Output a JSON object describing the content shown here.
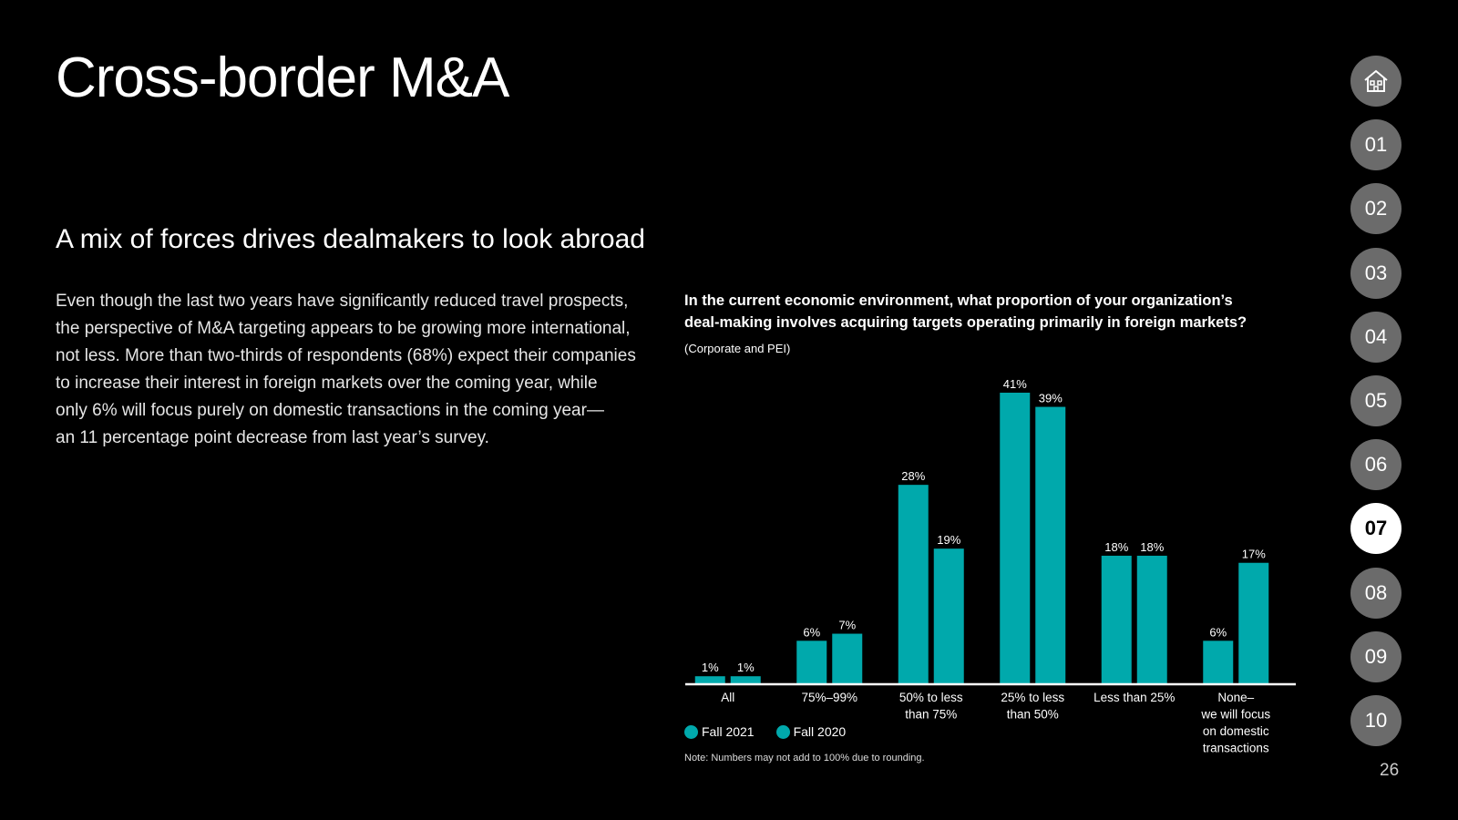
{
  "page": {
    "title": "Cross-border M&A",
    "subtitle": "A mix of forces drives dealmakers to look abroad",
    "body_lines": [
      "Even though the last two years have significantly reduced travel prospects,",
      "the perspective of M&A targeting appears to be growing more international,",
      "not less. More than two-thirds of respondents (68%) expect their companies",
      "to increase their interest in foreign markets over the coming year, while",
      "only 6% will focus purely on domestic transactions in the coming year—",
      "an 11 percentage point decrease from last year’s survey."
    ],
    "page_number": "26"
  },
  "nav": {
    "home_icon": "home-icon",
    "items": [
      "01",
      "02",
      "03",
      "04",
      "05",
      "06",
      "07",
      "08",
      "09",
      "10"
    ],
    "active": "07"
  },
  "colors": {
    "fall2021": "#00a9ac",
    "fall2020": "#00a9ac",
    "nav_inactive": "#6b6b6b",
    "nav_active": "#ffffff"
  },
  "chart_data": {
    "type": "bar",
    "title_lines": [
      "In the current economic environment, what proportion of your organization’s",
      "deal-making involves acquiring targets operating primarily in foreign markets?"
    ],
    "subtitle": "(Corporate and PEI)",
    "categories": [
      [
        "All"
      ],
      [
        "75%–99%"
      ],
      [
        "50% to less",
        "than 75%"
      ],
      [
        "25% to less",
        "than 50%"
      ],
      [
        "Less than 25%"
      ],
      [
        "None–",
        "we will focus",
        "on domestic",
        "transactions"
      ]
    ],
    "series": [
      {
        "name": "Fall 2021",
        "values": [
          1,
          6,
          28,
          41,
          18,
          6
        ]
      },
      {
        "name": "Fall 2020",
        "values": [
          1,
          7,
          19,
          39,
          18,
          17
        ]
      }
    ],
    "value_suffix": "%",
    "ylim": [
      0,
      41
    ],
    "legend_position": "bottom-left",
    "note": "Note: Numbers may not add to 100% due to rounding."
  }
}
